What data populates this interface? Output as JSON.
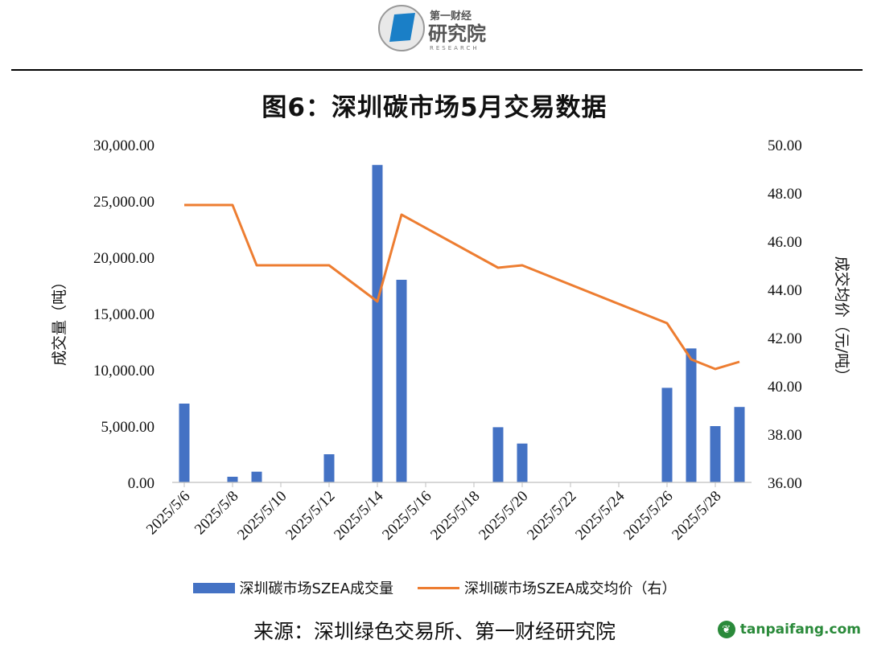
{
  "header": {
    "logo_top": "第一财经",
    "logo_main": "研究院",
    "logo_sub": "RESEARCH"
  },
  "chart_data": {
    "type": "bar+line",
    "title": "图6：深圳碳市场5月交易数据",
    "ylabel": "成交量（吨）",
    "y2label": "成交均价（元/吨）",
    "ylim": [
      0,
      30000
    ],
    "y2lim": [
      36,
      50
    ],
    "yticks": [
      "0.00",
      "5,000.00",
      "10,000.00",
      "15,000.00",
      "20,000.00",
      "25,000.00",
      "30,000.00"
    ],
    "y2ticks": [
      "36.00",
      "38.00",
      "40.00",
      "42.00",
      "44.00",
      "46.00",
      "48.00",
      "50.00"
    ],
    "x_range": [
      "2025/5/6",
      "2025/5/29"
    ],
    "xticks": [
      "2025/5/6",
      "2025/5/8",
      "2025/5/10",
      "2025/5/12",
      "2025/5/14",
      "2025/5/16",
      "2025/5/18",
      "2025/5/20",
      "2025/5/22",
      "2025/5/24",
      "2025/5/26",
      "2025/5/28"
    ],
    "grid": false,
    "legend_position": "bottom",
    "series": [
      {
        "name": "深圳碳市场SZEA成交量",
        "type": "bar",
        "axis": "left",
        "color": "#4472C4",
        "points": [
          {
            "x": "2025/5/6",
            "y": 7000
          },
          {
            "x": "2025/5/8",
            "y": 500
          },
          {
            "x": "2025/5/9",
            "y": 950
          },
          {
            "x": "2025/5/12",
            "y": 2500
          },
          {
            "x": "2025/5/14",
            "y": 28200
          },
          {
            "x": "2025/5/15",
            "y": 18000
          },
          {
            "x": "2025/5/19",
            "y": 4900
          },
          {
            "x": "2025/5/20",
            "y": 3450
          },
          {
            "x": "2025/5/26",
            "y": 8400
          },
          {
            "x": "2025/5/27",
            "y": 11900
          },
          {
            "x": "2025/5/28",
            "y": 5000
          },
          {
            "x": "2025/5/29",
            "y": 6700
          }
        ]
      },
      {
        "name": "深圳碳市场SZEA成交均价（右）",
        "type": "line",
        "axis": "right",
        "color": "#ED7D31",
        "points": [
          {
            "x": "2025/5/6",
            "y": 47.5
          },
          {
            "x": "2025/5/8",
            "y": 47.5
          },
          {
            "x": "2025/5/9",
            "y": 45.0
          },
          {
            "x": "2025/5/12",
            "y": 45.0
          },
          {
            "x": "2025/5/14",
            "y": 43.5
          },
          {
            "x": "2025/5/15",
            "y": 47.1
          },
          {
            "x": "2025/5/19",
            "y": 44.9
          },
          {
            "x": "2025/5/20",
            "y": 45.0
          },
          {
            "x": "2025/5/26",
            "y": 42.6
          },
          {
            "x": "2025/5/27",
            "y": 41.1
          },
          {
            "x": "2025/5/28",
            "y": 40.7
          },
          {
            "x": "2025/5/29",
            "y": 41.0
          }
        ]
      }
    ]
  },
  "source_text": "来源：深圳绿色交易所、第一财经研究院",
  "watermark": {
    "icon": "leaf-icon",
    "text": "tanpaifang.com"
  }
}
